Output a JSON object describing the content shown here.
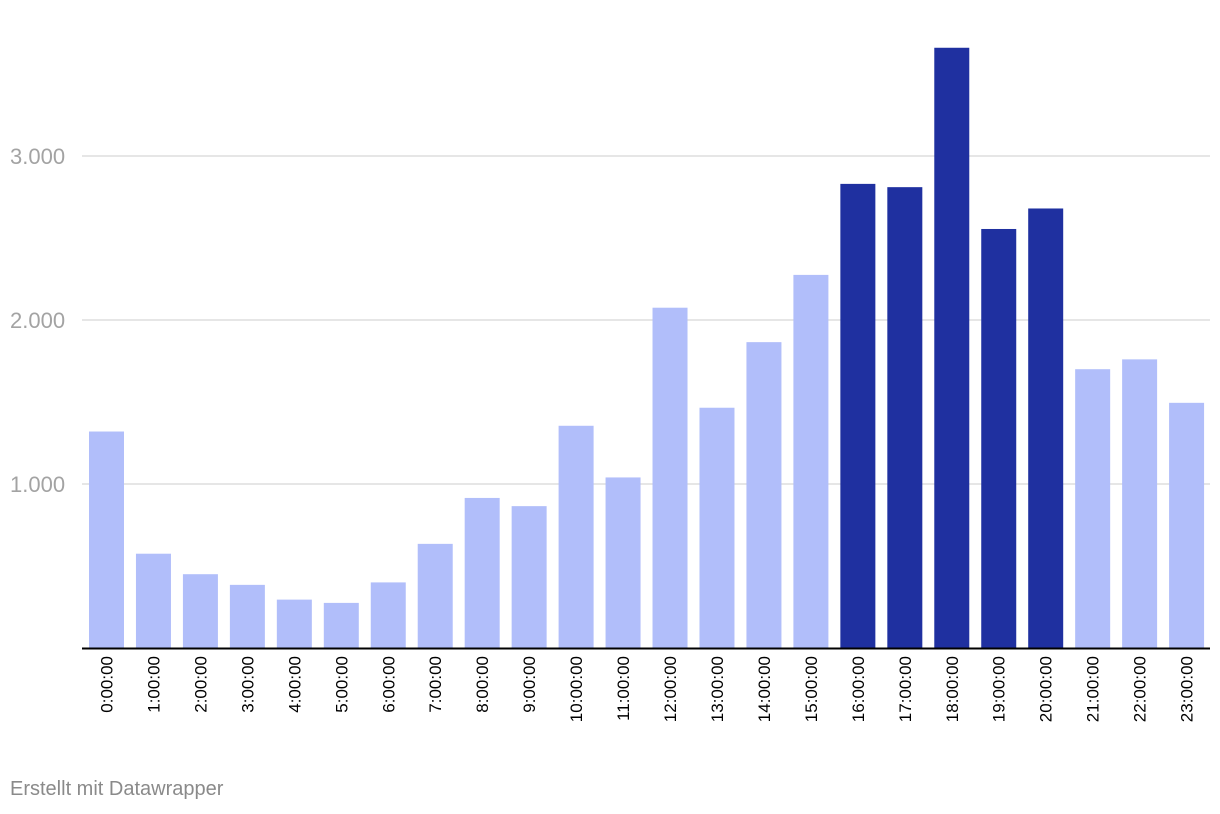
{
  "footer": {
    "credit": "Erstellt mit Datawrapper"
  },
  "colors": {
    "highlight": "#1f30a0",
    "normal": "#b1befa",
    "grid": "#dddddd",
    "baseline": "#000000",
    "tick_text": "#a3a3a3"
  },
  "chart_data": {
    "type": "bar",
    "title": "",
    "xlabel": "",
    "ylabel": "",
    "ylim": [
      0,
      3700
    ],
    "y_ticks": [
      {
        "value": 1000,
        "label": "1.000"
      },
      {
        "value": 2000,
        "label": "2.000"
      },
      {
        "value": 3000,
        "label": "3.000"
      }
    ],
    "grid": true,
    "categories": [
      "0:00:00",
      "1:00:00",
      "2:00:00",
      "3:00:00",
      "4:00:00",
      "5:00:00",
      "6:00:00",
      "7:00:00",
      "8:00:00",
      "9:00:00",
      "10:00:00",
      "11:00:00",
      "12:00:00",
      "13:00:00",
      "14:00:00",
      "15:00:00",
      "16:00:00",
      "17:00:00",
      "18:00:00",
      "19:00:00",
      "20:00:00",
      "21:00:00",
      "22:00:00",
      "23:00:00"
    ],
    "values": [
      1320,
      575,
      450,
      385,
      295,
      275,
      400,
      635,
      915,
      865,
      1355,
      1040,
      2075,
      1465,
      1865,
      2275,
      2830,
      2810,
      3660,
      2555,
      2680,
      1700,
      1760,
      1495
    ],
    "highlighted": [
      "16:00:00",
      "17:00:00",
      "18:00:00",
      "19:00:00",
      "20:00:00"
    ]
  }
}
